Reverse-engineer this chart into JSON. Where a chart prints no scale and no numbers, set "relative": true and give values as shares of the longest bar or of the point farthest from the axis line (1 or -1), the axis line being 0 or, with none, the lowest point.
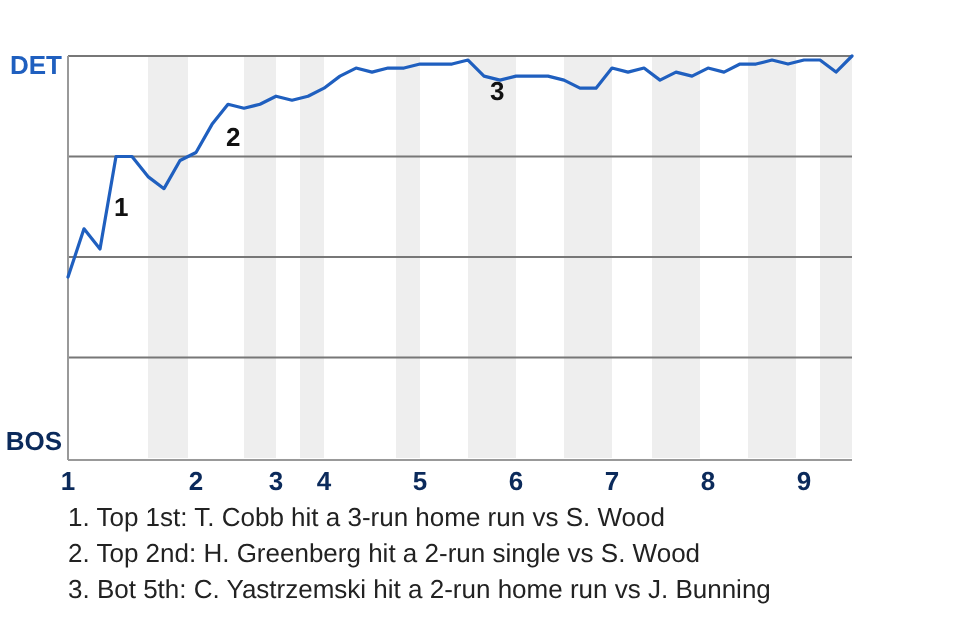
{
  "chart_data": {
    "type": "line",
    "relative": true,
    "grid": "y",
    "marker": "none",
    "line_style": "solid",
    "categories": [
      "1",
      null,
      null,
      null,
      null,
      null,
      null,
      null,
      "2",
      null,
      null,
      null,
      null,
      "3",
      null,
      null,
      "4",
      null,
      null,
      null,
      null,
      null,
      "5",
      null,
      null,
      null,
      null,
      null,
      "6",
      null,
      null,
      null,
      null,
      null,
      "7",
      null,
      null,
      null,
      null,
      null,
      "8",
      null,
      null,
      null,
      null,
      null,
      "9",
      null,
      null,
      null
    ],
    "series": [
      {
        "color": "#1f5fbf",
        "values": [
          0.45,
          0.57,
          0.52,
          0.75,
          0.75,
          0.7,
          0.67,
          0.74,
          0.76,
          0.83,
          0.88,
          0.87,
          0.88,
          0.9,
          0.89,
          0.9,
          0.92,
          0.95,
          0.97,
          0.96,
          0.97,
          0.97,
          0.98,
          0.98,
          0.98,
          0.99,
          0.95,
          0.94,
          0.95,
          0.95,
          0.95,
          0.94,
          0.92,
          0.92,
          0.97,
          0.96,
          0.97,
          0.94,
          0.96,
          0.95,
          0.97,
          0.96,
          0.98,
          0.98,
          0.99,
          0.98,
          0.99,
          0.99,
          0.96,
          1
        ]
      }
    ],
    "annotations": [
      "DET",
      "BOS",
      "1",
      "2",
      "3",
      "1. Top 1st: T. Cobb hit a 3-run home run vs S. Wood",
      "2. Top 2nd: H. Greenberg hit a 2-run single vs S. Wood",
      "3. Bot 5th: C. Yastrzemski hit a 2-run home run vs J. Bunning"
    ]
  }
}
